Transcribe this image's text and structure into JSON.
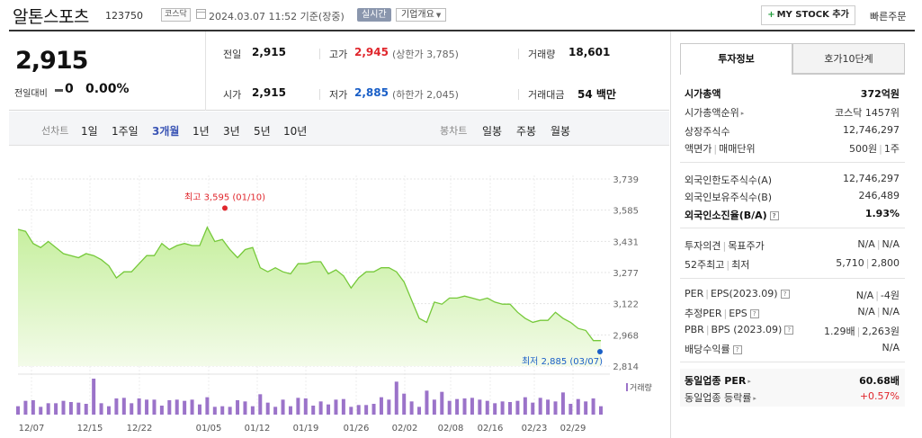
{
  "header": {
    "title": "알톤스포츠",
    "code": "123750",
    "market": "코스닥",
    "timestamp": "2024.03.07 11:52 기준(장중)",
    "realtime": "실시간",
    "company": "기업개요",
    "mystock": "MY STOCK 추가",
    "quick_order": "빠른주문"
  },
  "summary": {
    "price": "2,915",
    "change_label": "전일대비",
    "change": "0",
    "change_rate": "0.00%",
    "prev_label": "전일",
    "prev": "2,915",
    "high_label": "고가",
    "high": "2,945",
    "high_limit": "(상한가 3,785)",
    "volume_label": "거래량",
    "volume": "18,601",
    "open_label": "시가",
    "open": "2,915",
    "low_label": "저가",
    "low": "2,885",
    "low_limit": "(하한가 2,045)",
    "amount_label": "거래대금",
    "amount": "54 백만"
  },
  "periods": {
    "line_label": "선차트",
    "line_tabs": [
      "1일",
      "1주일",
      "3개월",
      "1년",
      "3년",
      "5년",
      "10년"
    ],
    "active": "3개월",
    "candle_label": "봉차트",
    "candle_tabs": [
      "일봉",
      "주봉",
      "월봉"
    ]
  },
  "chart_data": {
    "type": "area",
    "y_ticks": [
      "3,739",
      "3,585",
      "3,431",
      "3,277",
      "3,122",
      "2,968",
      "2,814"
    ],
    "ylim": [
      2814,
      3739
    ],
    "x_ticks": [
      "12/07",
      "12/15",
      "12/22",
      "01/05",
      "01/12",
      "01/19",
      "01/26",
      "02/02",
      "02/08",
      "02/16",
      "02/23",
      "02/29"
    ],
    "prices": [
      3490,
      3480,
      3420,
      3400,
      3430,
      3400,
      3370,
      3360,
      3350,
      3370,
      3360,
      3340,
      3310,
      3250,
      3280,
      3280,
      3320,
      3360,
      3360,
      3420,
      3390,
      3410,
      3420,
      3410,
      3410,
      3500,
      3430,
      3440,
      3390,
      3350,
      3390,
      3400,
      3300,
      3280,
      3300,
      3280,
      3270,
      3320,
      3320,
      3330,
      3330,
      3270,
      3290,
      3260,
      3200,
      3250,
      3280,
      3280,
      3300,
      3300,
      3280,
      3230,
      3140,
      3050,
      3030,
      3130,
      3120,
      3150,
      3150,
      3160,
      3150,
      3140,
      3150,
      3130,
      3120,
      3120,
      3080,
      3050,
      3030,
      3040,
      3040,
      3080,
      3050,
      3030,
      3000,
      2990,
      2940,
      2940
    ],
    "volumes": [
      14,
      23,
      24,
      13,
      19,
      19,
      23,
      21,
      20,
      18,
      60,
      19,
      14,
      27,
      28,
      19,
      27,
      25,
      25,
      15,
      24,
      25,
      23,
      25,
      17,
      29,
      13,
      14,
      13,
      24,
      22,
      14,
      34,
      20,
      13,
      25,
      14,
      28,
      27,
      15,
      22,
      17,
      25,
      26,
      13,
      16,
      16,
      18,
      29,
      25,
      55,
      35,
      22,
      13,
      40,
      25,
      38,
      23,
      26,
      27,
      28,
      25,
      23,
      19,
      22,
      21,
      23,
      29,
      20,
      28,
      25,
      22,
      37,
      18,
      26,
      22,
      27,
      14
    ],
    "annotations": {
      "max_label": "최고 3,595 (01/10)",
      "max_value": 3595,
      "min_label": "최저 2,885 (03/07)",
      "min_value": 2885
    },
    "volume_legend": "거래량",
    "colors": {
      "line": "#76c93a",
      "fill_top": "#c6ef9e",
      "fill_bottom": "#f3fbe9",
      "volume": "#9b73c9",
      "max": "#e0262c",
      "min": "#1a5fc7"
    }
  },
  "info": {
    "tab_active": "투자정보",
    "tab_other": "호가10단계",
    "rows1": [
      {
        "label": "시가총액",
        "value": "372억원",
        "bold": true
      },
      {
        "label": "시가총액순위",
        "value": "코스닥 1457위",
        "arrow": true
      },
      {
        "label": "상장주식수",
        "value": "12,746,297"
      },
      {
        "label": "액면가",
        "label2": "매매단위",
        "value": "500원",
        "value2": "1주"
      }
    ],
    "rows2": [
      {
        "label": "외국인한도주식수(A)",
        "value": "12,746,297"
      },
      {
        "label": "외국인보유주식수(B)",
        "value": "246,489"
      },
      {
        "label": "외국인소진율(B/A)",
        "value": "1.93%",
        "bold": true
      }
    ],
    "rows3": [
      {
        "label": "투자의견",
        "label2": "목표주가",
        "value": "N/A",
        "value2": "N/A"
      },
      {
        "label": "52주최고",
        "label2": "최저",
        "value": "5,710",
        "value2": "2,800"
      }
    ],
    "rows4": [
      {
        "label": "PER",
        "label2": "EPS(2023.09)",
        "value": "N/A",
        "value2": "-4원"
      },
      {
        "label": "추정PER",
        "label2": "EPS",
        "value": "N/A",
        "value2": "N/A"
      },
      {
        "label": "PBR",
        "label2": "BPS (2023.09)",
        "value": "1.29배",
        "value2": "2,263원"
      },
      {
        "label": "배당수익률",
        "value": "N/A"
      }
    ],
    "peer": [
      {
        "label": "동일업종 PER",
        "value": "60.68배"
      },
      {
        "label": "동일업종 등락률",
        "value": "+0.57%"
      }
    ]
  }
}
